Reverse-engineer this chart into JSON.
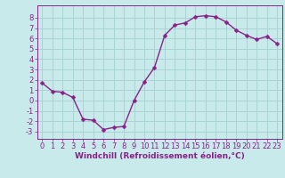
{
  "x": [
    0,
    1,
    2,
    3,
    4,
    5,
    6,
    7,
    8,
    9,
    10,
    11,
    12,
    13,
    14,
    15,
    16,
    17,
    18,
    19,
    20,
    21,
    22,
    23
  ],
  "y": [
    1.7,
    0.9,
    0.8,
    0.3,
    -1.8,
    -1.9,
    -2.8,
    -2.6,
    -2.5,
    0.0,
    1.8,
    3.2,
    6.3,
    7.3,
    7.5,
    8.1,
    8.2,
    8.1,
    7.6,
    6.8,
    6.3,
    5.9,
    6.2,
    5.5
  ],
  "line_color": "#882288",
  "marker": "D",
  "marker_size": 2.5,
  "line_width": 1.0,
  "xlabel": "Windchill (Refroidissement éolien,°C)",
  "bg_color": "#c8eaea",
  "grid_color": "#aad4d4",
  "tick_color": "#882288",
  "label_color": "#882288",
  "xlim": [
    -0.5,
    23.5
  ],
  "ylim": [
    -3.7,
    9.2
  ],
  "yticks": [
    -3,
    -2,
    -1,
    0,
    1,
    2,
    3,
    4,
    5,
    6,
    7,
    8
  ],
  "xticks": [
    0,
    1,
    2,
    3,
    4,
    5,
    6,
    7,
    8,
    9,
    10,
    11,
    12,
    13,
    14,
    15,
    16,
    17,
    18,
    19,
    20,
    21,
    22,
    23
  ],
  "tick_fontsize": 6.0,
  "xlabel_fontsize": 6.5
}
